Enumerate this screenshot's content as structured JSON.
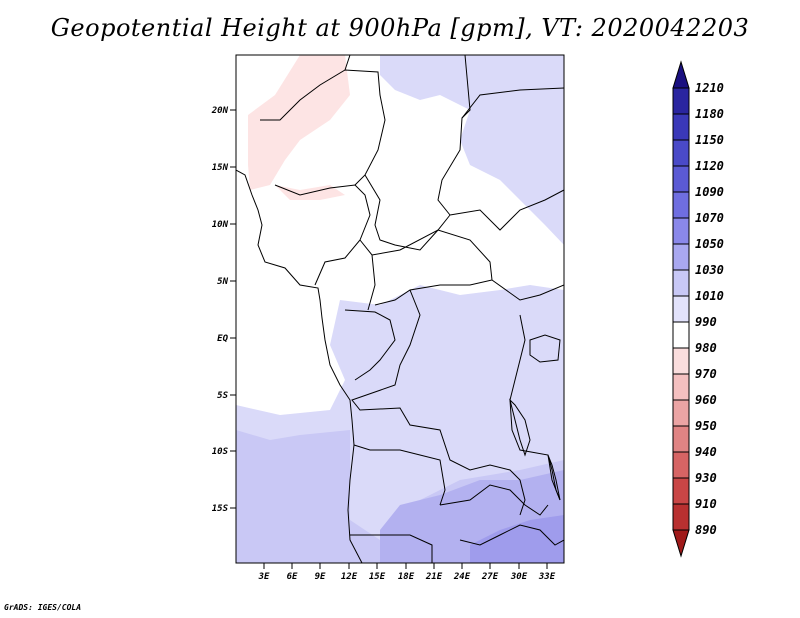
{
  "title": "Geopotential Height at 900hPa [gpm], VT: 2020042203",
  "credit": "GrADS: IGES/COLA",
  "map": {
    "variable": "Geopotential Height",
    "level": "900hPa",
    "units": "gpm",
    "valid_time": "2020042203",
    "lon_range": [
      0,
      34
    ],
    "lat_range": [
      -20,
      25
    ],
    "lat_ticks": [
      "20N",
      "15N",
      "10N",
      "5N",
      "EQ",
      "5S",
      "10S",
      "15S"
    ],
    "lon_ticks": [
      "3E",
      "6E",
      "9E",
      "12E",
      "15E",
      "18E",
      "21E",
      "24E",
      "27E",
      "30E",
      "33E"
    ]
  },
  "colorbar": {
    "levels": [
      "1210",
      "1180",
      "1150",
      "1120",
      "1090",
      "1070",
      "1050",
      "1030",
      "1010",
      "990",
      "980",
      "970",
      "960",
      "950",
      "940",
      "930",
      "910",
      "890"
    ],
    "colors": [
      "#1a1080",
      "#2a25a0",
      "#3a38b8",
      "#4a4ac8",
      "#5b5ad4",
      "#6f6ee0",
      "#8a88ea",
      "#a9a8f0",
      "#c8c8f6",
      "#e2e2fb",
      "#ffffff",
      "#fadddd",
      "#f4c0c0",
      "#eba4a4",
      "#e08484",
      "#d66464",
      "#c94646",
      "#b83030",
      "#a01a1a"
    ]
  },
  "field_colors": {
    "band_1010_1030": "#dadaf9",
    "band_1030_1050": "#c9c8f5",
    "band_1050_1070": "#b3b1f0",
    "band_1070_1090": "#9f9cec",
    "band_990_1010": "#ffffff",
    "band_980_990": "#fde4e4"
  }
}
